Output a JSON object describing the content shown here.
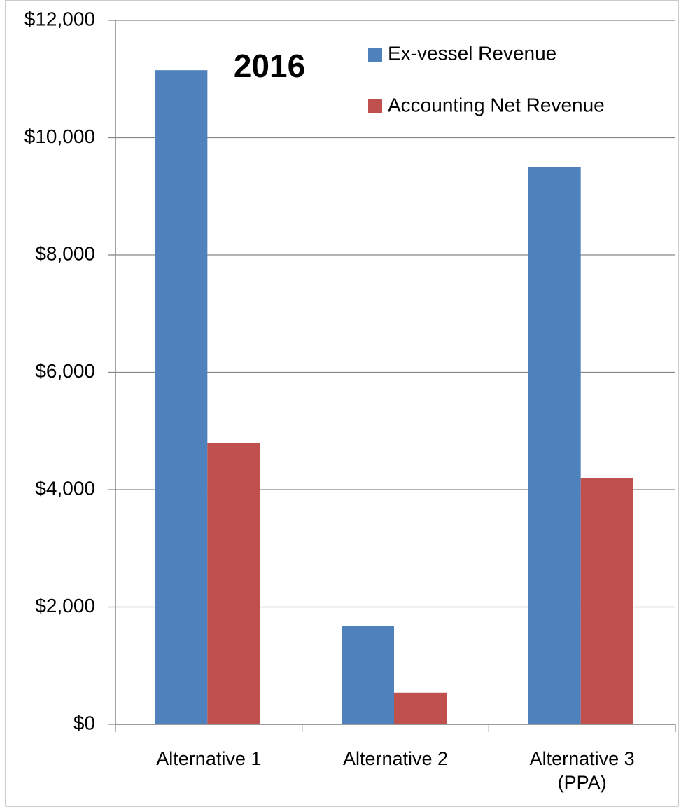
{
  "chart_data": {
    "type": "bar",
    "title": "2016",
    "categories": [
      "Alternative 1",
      "Alternative 2",
      "Alternative 3 (PPA)"
    ],
    "series": [
      {
        "name": "Ex-vessel Revenue",
        "color": "#4f81bd",
        "values": [
          11150,
          1680,
          9500
        ]
      },
      {
        "name": "Accounting Net Revenue",
        "color": "#c0504d",
        "values": [
          4800,
          540,
          4200
        ]
      }
    ],
    "ylim": [
      0,
      12000
    ],
    "yticks": [
      {
        "value": 0,
        "label": "$0"
      },
      {
        "value": 2000,
        "label": "$2,000"
      },
      {
        "value": 4000,
        "label": "$4,000"
      },
      {
        "value": 6000,
        "label": "$6,000"
      },
      {
        "value": 8000,
        "label": "$8,000"
      },
      {
        "value": 10000,
        "label": "$10,000"
      },
      {
        "value": 12000,
        "label": "$12,000"
      }
    ],
    "grid": true,
    "legend": "top-right"
  }
}
